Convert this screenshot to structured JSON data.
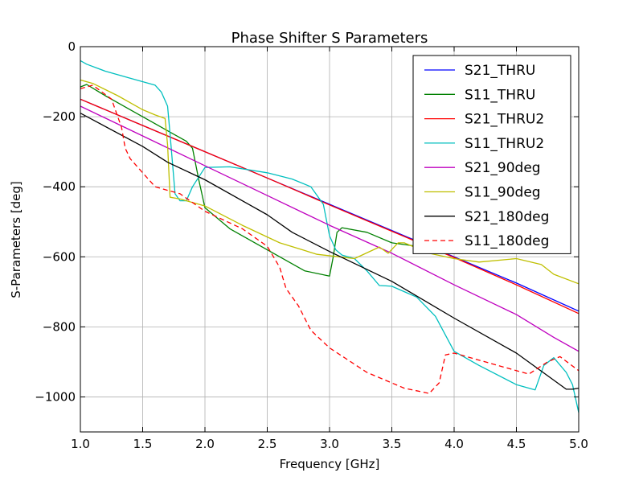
{
  "chart_data": {
    "type": "line",
    "title": "Phase Shifter S Parameters",
    "xlabel": "Frequency [GHz]",
    "ylabel": "S-Parameters [deg]",
    "xlim": [
      1.0,
      5.0
    ],
    "ylim": [
      -1100,
      0
    ],
    "xticks": [
      1.0,
      1.5,
      2.0,
      2.5,
      3.0,
      3.5,
      4.0,
      4.5,
      5.0
    ],
    "xtick_labels": [
      "1.0",
      "1.5",
      "2.0",
      "2.5",
      "3.0",
      "3.5",
      "4.0",
      "4.5",
      "5.0"
    ],
    "yticks": [
      0,
      -200,
      -400,
      -600,
      -800,
      -1000
    ],
    "ytick_labels": [
      "0",
      "−200",
      "−400",
      "−600",
      "−800",
      "−1000"
    ],
    "grid": true,
    "legend_position": "top-right",
    "series": [
      {
        "name": "S21_THRU",
        "color": "#0000ff",
        "dash": "solid",
        "x": [
          1.0,
          1.5,
          2.0,
          2.5,
          3.0,
          3.5,
          4.0,
          4.5,
          5.0
        ],
        "y": [
          -150,
          -225,
          -300,
          -375,
          -450,
          -525,
          -600,
          -675,
          -755
        ]
      },
      {
        "name": "S11_THRU",
        "color": "#008000",
        "dash": "solid",
        "x": [
          1.0,
          1.05,
          1.2,
          1.4,
          1.6,
          1.75,
          1.85,
          1.9,
          1.95,
          2.0,
          2.2,
          2.5,
          2.8,
          3.0,
          3.03,
          3.06,
          3.1,
          3.3,
          3.5,
          3.7,
          3.8
        ],
        "y": [
          -115,
          -108,
          -140,
          -180,
          -220,
          -250,
          -270,
          -290,
          -380,
          -460,
          -520,
          -580,
          -640,
          -655,
          -600,
          -530,
          -517,
          -530,
          -560,
          -570,
          -572
        ]
      },
      {
        "name": "S21_THRU2",
        "color": "#ff0000",
        "dash": "solid",
        "x": [
          1.0,
          1.5,
          2.0,
          2.5,
          3.0,
          3.5,
          4.0,
          4.5,
          5.0
        ],
        "y": [
          -150,
          -225,
          -300,
          -375,
          -452,
          -527,
          -602,
          -680,
          -762
        ]
      },
      {
        "name": "S11_THRU2",
        "color": "#00bfbf",
        "dash": "solid",
        "x": [
          1.0,
          1.05,
          1.2,
          1.4,
          1.6,
          1.65,
          1.7,
          1.72,
          1.76,
          1.8,
          1.85,
          1.9,
          2.0,
          2.2,
          2.5,
          2.7,
          2.85,
          2.95,
          3.0,
          3.05,
          3.1,
          3.2,
          3.3,
          3.4,
          3.45,
          3.5,
          3.7,
          3.85,
          4.0,
          4.2,
          4.5,
          4.65,
          4.72,
          4.8,
          4.9,
          4.95,
          5.0
        ],
        "y": [
          -40,
          -50,
          -70,
          -90,
          -110,
          -130,
          -170,
          -250,
          -420,
          -440,
          -440,
          -400,
          -345,
          -343,
          -360,
          -378,
          -400,
          -450,
          -540,
          -580,
          -595,
          -605,
          -640,
          -682,
          -683,
          -684,
          -715,
          -770,
          -870,
          -910,
          -965,
          -980,
          -910,
          -888,
          -930,
          -965,
          -1045
        ]
      },
      {
        "name": "S21_90deg",
        "color": "#bf00bf",
        "dash": "solid",
        "x": [
          1.0,
          1.5,
          2.0,
          2.5,
          3.0,
          3.5,
          4.0,
          4.5,
          4.8,
          5.0
        ],
        "y": [
          -170,
          -255,
          -340,
          -425,
          -510,
          -590,
          -680,
          -765,
          -830,
          -870
        ]
      },
      {
        "name": "S11_90deg",
        "color": "#bfbf00",
        "dash": "solid",
        "x": [
          1.0,
          1.1,
          1.3,
          1.5,
          1.6,
          1.68,
          1.7,
          1.72,
          1.8,
          2.0,
          2.3,
          2.6,
          2.9,
          3.2,
          3.4,
          3.47,
          3.55,
          3.6,
          3.8,
          4.0,
          4.2,
          4.5,
          4.7,
          4.8,
          5.0
        ],
        "y": [
          -95,
          -105,
          -140,
          -180,
          -195,
          -205,
          -280,
          -430,
          -435,
          -455,
          -510,
          -560,
          -593,
          -605,
          -572,
          -590,
          -560,
          -560,
          -590,
          -605,
          -615,
          -605,
          -622,
          -650,
          -677
        ]
      },
      {
        "name": "S21_180deg",
        "color": "#000000",
        "dash": "solid",
        "x": [
          1.0,
          1.5,
          1.7,
          2.0,
          2.5,
          2.7,
          3.0,
          3.5,
          4.0,
          4.5,
          4.9,
          4.95,
          5.0
        ],
        "y": [
          -190,
          -285,
          -330,
          -380,
          -480,
          -530,
          -585,
          -670,
          -775,
          -875,
          -978,
          -978,
          -975
        ]
      },
      {
        "name": "S11_180deg",
        "color": "#ff0000",
        "dash": "dashed",
        "x": [
          1.0,
          1.1,
          1.25,
          1.3,
          1.33,
          1.36,
          1.4,
          1.6,
          1.8,
          2.0,
          2.3,
          2.5,
          2.6,
          2.65,
          2.75,
          2.85,
          3.0,
          3.3,
          3.6,
          3.8,
          3.88,
          3.93,
          4.0,
          4.3,
          4.6,
          4.75,
          4.85,
          5.0
        ],
        "y": [
          -120,
          -110,
          -150,
          -200,
          -230,
          -290,
          -320,
          -400,
          -420,
          -470,
          -520,
          -570,
          -630,
          -690,
          -740,
          -810,
          -860,
          -930,
          -975,
          -990,
          -960,
          -880,
          -875,
          -905,
          -935,
          -900,
          -885,
          -925
        ]
      }
    ]
  }
}
